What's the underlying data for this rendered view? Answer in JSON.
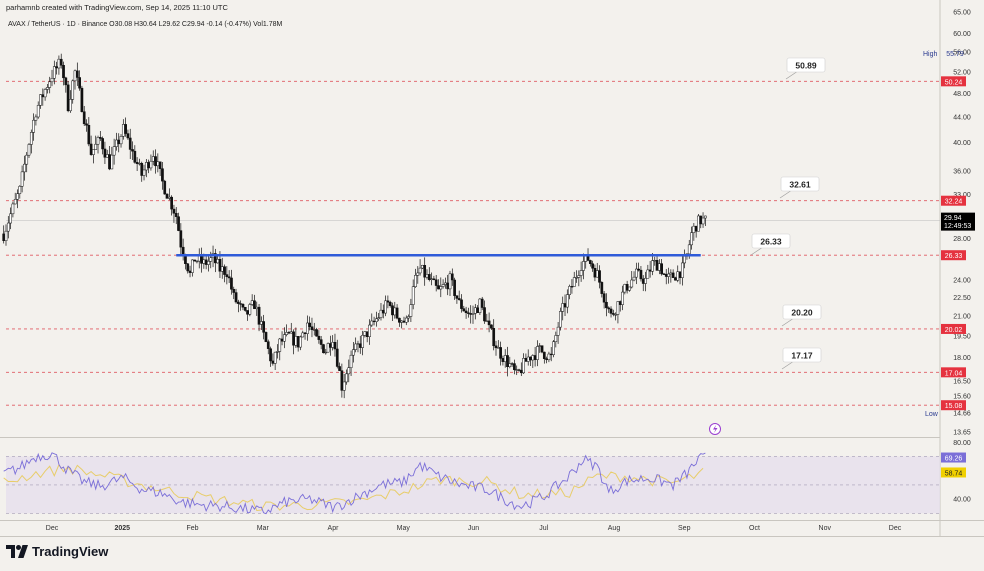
{
  "header": {
    "credit": "parhamnb created with TradingView.com, Sep 14, 2025 11:10 UTC",
    "symbol_line": "AVAX / TetherUS · 1D · Binance  O30.08  H30.64  L29.62  C29.94  -0.14 (-0.47%)  Vol1.78M"
  },
  "brand": {
    "logo_text": "TradingView"
  },
  "colors": {
    "background": "#f3f1ed",
    "candle": "#111111",
    "support_line": "#2f5bd9",
    "level_dashed": "#e05a63",
    "level_tag": "#e5323f",
    "rsi_line": "#7b6fd8",
    "rsi_ma": "#e8cd6a",
    "rsi_band": "#e6e0ec",
    "price_tag": "#000000",
    "rsi_tag": "#7b6fd8",
    "rsi_ma_tag": "#f0d000"
  },
  "chart_data": {
    "type": "candlestick",
    "title": "AVAX / TetherUS · 1D · Binance",
    "price_axis": {
      "scale": "log",
      "ticks": [
        "65.00",
        "60.00",
        "56.00",
        "52.00",
        "48.00",
        "44.00",
        "40.00",
        "36.00",
        "33.00",
        "30.50",
        "28.00",
        "24.00",
        "22.50",
        "21.00",
        "19.50",
        "18.00",
        "16.50",
        "15.60",
        "14.66",
        "13.65"
      ],
      "range": [
        13.4,
        65.0
      ]
    },
    "time_axis": {
      "labels": [
        "Dec",
        "2025",
        "Feb",
        "Mar",
        "Apr",
        "May",
        "Jun",
        "Jul",
        "Aug",
        "Sep",
        "Oct",
        "Nov",
        "Dec"
      ],
      "range": [
        "2024-11-13",
        "2025-12-24"
      ]
    },
    "ohlc": {
      "open": 30.08,
      "high": 30.64,
      "low": 29.62,
      "close": 29.94,
      "change": -0.14,
      "change_pct": -0.47,
      "volume": "1.78M"
    },
    "last_price": {
      "value": "29.94",
      "countdown": "12:49:53"
    },
    "high_marker": {
      "label": "High",
      "value": "55.79"
    },
    "low_marker": {
      "label": "Low",
      "value": "14.66"
    },
    "horizontal_levels": [
      {
        "value": 50.24,
        "tag": "50.24",
        "callout": "50.89"
      },
      {
        "value": 32.24,
        "tag": "32.24",
        "callout": "32.61"
      },
      {
        "value": 26.33,
        "tag": "26.33",
        "callout": "26.33"
      },
      {
        "value": 20.02,
        "tag": "20.02",
        "callout": "20.20"
      },
      {
        "value": 17.04,
        "tag": "17.04",
        "callout": "17.17"
      },
      {
        "value": 15.08,
        "tag": "15.08",
        "callout": ""
      }
    ],
    "support_line": {
      "value": 26.33,
      "from": "2025-01-26",
      "to": "2025-09-11"
    },
    "close_path_weekly": [
      [
        "2024-11-12",
        28.5
      ],
      [
        "2024-11-19",
        33.5
      ],
      [
        "2024-11-26",
        45.0
      ],
      [
        "2024-12-03",
        51.5
      ],
      [
        "2024-12-07",
        54.0
      ],
      [
        "2024-12-10",
        46.0
      ],
      [
        "2024-12-13",
        52.0
      ],
      [
        "2024-12-17",
        44.0
      ],
      [
        "2024-12-20",
        38.5
      ],
      [
        "2024-12-24",
        40.5
      ],
      [
        "2024-12-28",
        37.0
      ],
      [
        "2025-01-03",
        42.0
      ],
      [
        "2025-01-07",
        38.5
      ],
      [
        "2025-01-11",
        35.5
      ],
      [
        "2025-01-16",
        38.5
      ],
      [
        "2025-01-20",
        34.5
      ],
      [
        "2025-01-26",
        30.5
      ],
      [
        "2025-01-28",
        27.5
      ],
      [
        "2025-02-01",
        24.5
      ],
      [
        "2025-02-03",
        26.0
      ],
      [
        "2025-02-07",
        25.5
      ],
      [
        "2025-02-11",
        26.0
      ],
      [
        "2025-02-14",
        25.0
      ],
      [
        "2025-02-17",
        24.8
      ],
      [
        "2025-02-20",
        22.5
      ],
      [
        "2025-02-25",
        21.0
      ],
      [
        "2025-03-01",
        22.0
      ],
      [
        "2025-03-05",
        19.5
      ],
      [
        "2025-03-09",
        17.5
      ],
      [
        "2025-03-12",
        19.0
      ],
      [
        "2025-03-16",
        19.5
      ],
      [
        "2025-03-20",
        19.0
      ],
      [
        "2025-03-24",
        20.5
      ],
      [
        "2025-03-28",
        19.2
      ],
      [
        "2025-04-01",
        18.5
      ],
      [
        "2025-04-04",
        19.5
      ],
      [
        "2025-04-08",
        16.2
      ],
      [
        "2025-04-12",
        18.0
      ],
      [
        "2025-04-16",
        19.0
      ],
      [
        "2025-04-20",
        20.0
      ],
      [
        "2025-04-24",
        21.0
      ],
      [
        "2025-04-28",
        22.0
      ],
      [
        "2025-05-02",
        21.0
      ],
      [
        "2025-05-06",
        20.5
      ],
      [
        "2025-05-10",
        24.0
      ],
      [
        "2025-05-12",
        25.0
      ],
      [
        "2025-05-16",
        24.0
      ],
      [
        "2025-05-20",
        23.0
      ],
      [
        "2025-05-25",
        24.0
      ],
      [
        "2025-05-29",
        22.0
      ],
      [
        "2025-06-03",
        21.0
      ],
      [
        "2025-06-07",
        22.0
      ],
      [
        "2025-06-11",
        20.0
      ],
      [
        "2025-06-15",
        18.5
      ],
      [
        "2025-06-20",
        17.5
      ],
      [
        "2025-06-23",
        16.8
      ],
      [
        "2025-06-28",
        18.0
      ],
      [
        "2025-07-03",
        18.5
      ],
      [
        "2025-07-08",
        18.0
      ],
      [
        "2025-07-12",
        21.0
      ],
      [
        "2025-07-17",
        23.5
      ],
      [
        "2025-07-21",
        25.5
      ],
      [
        "2025-07-24",
        26.0
      ],
      [
        "2025-07-28",
        24.5
      ],
      [
        "2025-08-01",
        22.0
      ],
      [
        "2025-08-03",
        21.0
      ],
      [
        "2025-08-06",
        22.0
      ],
      [
        "2025-08-10",
        23.5
      ],
      [
        "2025-08-14",
        24.5
      ],
      [
        "2025-08-18",
        24.0
      ],
      [
        "2025-08-21",
        25.5
      ],
      [
        "2025-08-24",
        25.5
      ],
      [
        "2025-08-27",
        24.0
      ],
      [
        "2025-08-31",
        24.5
      ],
      [
        "2025-09-03",
        25.0
      ],
      [
        "2025-09-05",
        26.3
      ],
      [
        "2025-09-07",
        28.5
      ],
      [
        "2025-09-09",
        29.5
      ],
      [
        "2025-09-11",
        30.0
      ],
      [
        "2025-09-13",
        29.94
      ]
    ],
    "rsi": {
      "axis_ticks": [
        "80.00",
        "40.00"
      ],
      "range": [
        26,
        83
      ],
      "band": [
        30,
        70
      ],
      "value": "69.26",
      "ma_value": "58.74",
      "path_weekly": [
        [
          "2024-11-12",
          58
        ],
        [
          "2024-11-19",
          62
        ],
        [
          "2024-11-26",
          70
        ],
        [
          "2024-12-03",
          72
        ],
        [
          "2024-12-10",
          60
        ],
        [
          "2024-12-17",
          52
        ],
        [
          "2024-12-24",
          49
        ],
        [
          "2025-01-03",
          55
        ],
        [
          "2025-01-11",
          47
        ],
        [
          "2025-01-20",
          44
        ],
        [
          "2025-01-28",
          38
        ],
        [
          "2025-02-05",
          36
        ],
        [
          "2025-02-15",
          35
        ],
        [
          "2025-02-25",
          33
        ],
        [
          "2025-03-05",
          31
        ],
        [
          "2025-03-15",
          38
        ],
        [
          "2025-03-25",
          40
        ],
        [
          "2025-04-05",
          34
        ],
        [
          "2025-04-15",
          42
        ],
        [
          "2025-04-25",
          50
        ],
        [
          "2025-05-05",
          52
        ],
        [
          "2025-05-12",
          64
        ],
        [
          "2025-05-20",
          56
        ],
        [
          "2025-05-30",
          50
        ],
        [
          "2025-06-10",
          47
        ],
        [
          "2025-06-20",
          38
        ],
        [
          "2025-06-25",
          35
        ],
        [
          "2025-07-05",
          42
        ],
        [
          "2025-07-15",
          55
        ],
        [
          "2025-07-22",
          68
        ],
        [
          "2025-07-28",
          63
        ],
        [
          "2025-08-02",
          45
        ],
        [
          "2025-08-10",
          53
        ],
        [
          "2025-08-20",
          55
        ],
        [
          "2025-08-30",
          50
        ],
        [
          "2025-09-05",
          58
        ],
        [
          "2025-09-10",
          68
        ],
        [
          "2025-09-13",
          69.26
        ]
      ],
      "ma_path_weekly": [
        [
          "2024-11-12",
          52
        ],
        [
          "2024-11-26",
          58
        ],
        [
          "2024-12-10",
          62
        ],
        [
          "2024-12-24",
          57
        ],
        [
          "2025-01-11",
          50
        ],
        [
          "2025-01-28",
          44
        ],
        [
          "2025-02-15",
          39
        ],
        [
          "2025-03-05",
          35
        ],
        [
          "2025-03-25",
          36
        ],
        [
          "2025-04-15",
          38
        ],
        [
          "2025-05-05",
          46
        ],
        [
          "2025-05-20",
          54
        ],
        [
          "2025-06-10",
          52
        ],
        [
          "2025-06-25",
          43
        ],
        [
          "2025-07-15",
          44
        ],
        [
          "2025-07-28",
          56
        ],
        [
          "2025-08-10",
          56
        ],
        [
          "2025-08-30",
          51
        ],
        [
          "2025-09-13",
          58.74
        ]
      ]
    }
  }
}
